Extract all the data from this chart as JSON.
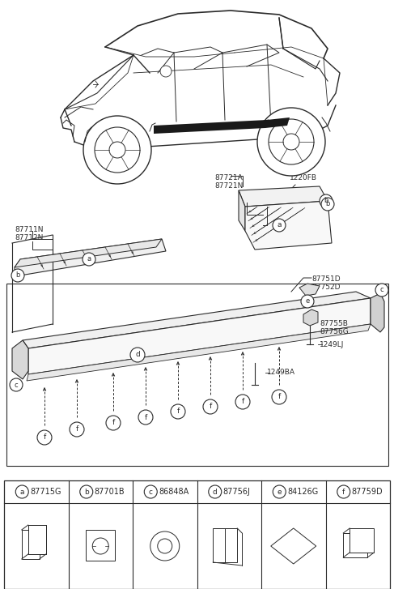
{
  "bg_color": "#ffffff",
  "line_color": "#2a2a2a",
  "text_color": "#2a2a2a",
  "part_labels": [
    {
      "letter": "a",
      "code": "87715G"
    },
    {
      "letter": "b",
      "code": "87701B"
    },
    {
      "letter": "c",
      "code": "86848A"
    },
    {
      "letter": "d",
      "code": "87756J"
    },
    {
      "letter": "e",
      "code": "84126G"
    },
    {
      "letter": "f",
      "code": "87759D"
    }
  ],
  "callout_fs": 6.5,
  "label_fs": 7.0,
  "icon_fs": 6.0
}
